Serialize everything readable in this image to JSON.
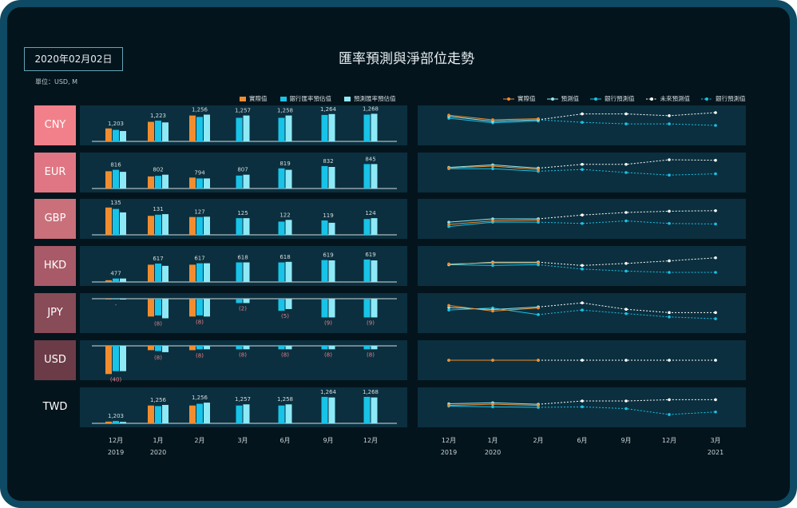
{
  "date_label": "2020年02月02日",
  "title": "匯率預測與淨部位走勢",
  "unit": "單位：USD, M",
  "legend_bar": [
    {
      "name": "實際值",
      "color": "#f28d2f"
    },
    {
      "name": "銀行匯率預估值",
      "color": "#18c3e8"
    },
    {
      "name": "預測匯率預估值",
      "color": "#8ee9f6"
    }
  ],
  "legend_line": [
    {
      "name": "實際值",
      "color": "#f28d2f",
      "style": "solid"
    },
    {
      "name": "預測值",
      "color": "#8ee9f6",
      "style": "solid"
    },
    {
      "name": "銀行預測值",
      "color": "#18c3e8",
      "style": "solid"
    },
    {
      "name": "未來預測值",
      "color": "#ffffff",
      "style": "dashed"
    },
    {
      "name": "銀行預測值",
      "color": "#18c3e8",
      "style": "dashed"
    }
  ],
  "bar_x_labels": [
    {
      "month": "12月",
      "year": "2019"
    },
    {
      "month": "1月",
      "year": "2020"
    },
    {
      "month": "2月",
      "year": ""
    },
    {
      "month": "3月",
      "year": ""
    },
    {
      "month": "6月",
      "year": ""
    },
    {
      "month": "9月",
      "year": ""
    },
    {
      "month": "12月",
      "year": ""
    }
  ],
  "line_x_labels": [
    {
      "month": "12月",
      "year": "2019"
    },
    {
      "month": "1月",
      "year": "2020"
    },
    {
      "month": "2月",
      "year": ""
    },
    {
      "month": "6月",
      "year": ""
    },
    {
      "month": "9月",
      "year": ""
    },
    {
      "month": "12月",
      "year": ""
    },
    {
      "month": "3月",
      "year": "2021"
    }
  ],
  "chart_data": [
    {
      "currency": "CNY",
      "color": "#f2808a",
      "type": "bar",
      "labels": [
        "1,203",
        "1,223",
        "1,256",
        "1,257",
        "1,258",
        "1,264",
        "1,268"
      ],
      "actual": [
        0.45,
        0.68,
        0.9,
        null,
        null,
        null,
        null
      ],
      "bank": [
        0.4,
        0.72,
        0.85,
        0.82,
        0.82,
        0.92,
        0.93
      ],
      "pred": [
        0.36,
        0.66,
        0.93,
        0.9,
        0.9,
        0.95,
        0.96
      ],
      "lines": {
        "actual": [
          0.1,
          0.28,
          0.24
        ],
        "pred": [
          0.15,
          0.34,
          0.28
        ],
        "bank": [
          0.22,
          0.4,
          0.33
        ],
        "future": [
          0.28,
          0.05,
          0.05,
          0.12,
          0.0
        ],
        "bank_future": [
          0.28,
          0.38,
          0.44,
          0.44,
          0.5
        ]
      }
    },
    {
      "currency": "EUR",
      "color": "#e07683",
      "type": "bar",
      "labels": [
        "816",
        "802",
        "794",
        "807",
        "819",
        "832",
        "845"
      ],
      "actual": [
        0.6,
        0.42,
        0.38,
        null,
        null,
        null,
        null
      ],
      "bank": [
        0.65,
        0.44,
        0.35,
        0.45,
        0.7,
        0.78,
        0.85
      ],
      "pred": [
        0.58,
        0.48,
        0.35,
        0.48,
        0.65,
        0.75,
        0.85
      ],
      "lines": {
        "actual": [
          0.32,
          0.25,
          0.38
        ],
        "pred": [
          0.3,
          0.2,
          0.33
        ],
        "bank": [
          0.35,
          0.35,
          0.45
        ],
        "future": [
          0.33,
          0.18,
          0.18,
          0.0,
          0.02
        ],
        "bank_future": [
          0.45,
          0.38,
          0.5,
          0.6,
          0.55
        ]
      }
    },
    {
      "currency": "GBP",
      "color": "#c9707b",
      "type": "bar",
      "labels": [
        "135",
        "131",
        "127",
        "125",
        "122",
        "119",
        "124"
      ],
      "actual": [
        0.95,
        0.66,
        0.62,
        null,
        null,
        null,
        null
      ],
      "bank": [
        0.9,
        0.7,
        0.62,
        0.58,
        0.46,
        0.5,
        0.55
      ],
      "pred": [
        0.78,
        0.72,
        0.63,
        0.58,
        0.52,
        0.42,
        0.58
      ],
      "lines": {
        "actual": [
          0.72,
          0.58,
          0.55
        ],
        "pred": [
          0.63,
          0.5,
          0.5
        ],
        "bank": [
          0.8,
          0.63,
          0.63
        ],
        "future": [
          0.5,
          0.35,
          0.25,
          0.2,
          0.18
        ],
        "bank_future": [
          0.63,
          0.68,
          0.58,
          0.68,
          0.7
        ]
      }
    },
    {
      "currency": "HKD",
      "color": "#a85a68",
      "type": "bar",
      "labels": [
        "477",
        "617",
        "617",
        "618",
        "618",
        "619",
        "619"
      ],
      "actual": [
        0.06,
        0.6,
        0.6,
        null,
        null,
        null,
        null
      ],
      "bank": [
        0.12,
        0.64,
        0.65,
        0.68,
        0.68,
        0.76,
        0.78
      ],
      "pred": [
        0.12,
        0.56,
        0.65,
        0.68,
        0.7,
        0.75,
        0.75
      ],
      "lines": {
        "actual": [
          0.42,
          0.38,
          0.38
        ],
        "pred": [
          0.45,
          0.35,
          0.35
        ],
        "bank": [
          0.45,
          0.48,
          0.45
        ],
        "future": [
          0.35,
          0.48,
          0.4,
          0.3,
          0.18
        ],
        "bank_future": [
          0.45,
          0.62,
          0.7,
          0.75,
          0.75
        ]
      }
    },
    {
      "currency": "JPY",
      "color": "#884b58",
      "type": "neg",
      "labels": [
        "-",
        "(8)",
        "(8)",
        "(2)",
        "(5)",
        "(9)",
        "(9)"
      ],
      "actual": [
        0.02,
        0.62,
        0.62,
        null,
        null,
        null,
        null
      ],
      "bank": [
        0.02,
        0.58,
        0.58,
        0.15,
        0.42,
        0.65,
        0.65
      ],
      "pred": [
        0.02,
        0.68,
        0.62,
        0.15,
        0.36,
        0.65,
        0.65
      ],
      "lines": {
        "actual": [
          0.2,
          0.42,
          0.3
        ],
        "pred": [
          0.28,
          0.36,
          0.26
        ],
        "bank": [
          0.38,
          0.3,
          0.56
        ],
        "future": [
          0.26,
          0.1,
          0.35,
          0.48,
          0.48
        ],
        "bank_future": [
          0.56,
          0.38,
          0.52,
          0.65,
          0.72
        ]
      }
    },
    {
      "currency": "USD",
      "color": "#6b3c48",
      "type": "neg",
      "labels": [
        "(40)",
        "(8)",
        "(8)",
        "(8)",
        "(8)",
        "(8)",
        "(8)"
      ],
      "actual": [
        0.98,
        0.15,
        0.15,
        null,
        null,
        null,
        null
      ],
      "bank": [
        0.88,
        0.18,
        0.12,
        0.12,
        0.12,
        0.12,
        0.12
      ],
      "pred": [
        0.88,
        0.22,
        0.12,
        0.12,
        0.12,
        0.12,
        0.12
      ],
      "lines": {
        "actual": [
          0.5,
          0.5,
          0.5
        ],
        "pred": [
          0.5,
          0.5,
          0.5
        ],
        "bank": [
          0.5,
          0.5,
          0.5
        ],
        "future": [
          0.5,
          0.5,
          0.5,
          0.5,
          0.5
        ],
        "bank_future": [
          0.5,
          0.5,
          0.5,
          0.5,
          0.5
        ]
      }
    },
    {
      "currency": "TWD",
      "color": "",
      "type": "bar",
      "labels": [
        "1,203",
        "1,256",
        "1,256",
        "1,257",
        "1,258",
        "1,264",
        "1,268"
      ],
      "actual": [
        0.06,
        0.62,
        0.62,
        null,
        null,
        null,
        null
      ],
      "bank": [
        0.08,
        0.6,
        0.68,
        0.62,
        0.62,
        0.92,
        0.92
      ],
      "pred": [
        0.05,
        0.64,
        0.72,
        0.66,
        0.66,
        0.9,
        0.9
      ],
      "lines": {
        "actual": [
          0.42,
          0.38,
          0.42
        ],
        "pred": [
          0.36,
          0.32,
          0.38
        ],
        "bank": [
          0.45,
          0.48,
          0.5
        ],
        "future": [
          0.38,
          0.25,
          0.25,
          0.2,
          0.2
        ],
        "bank_future": [
          0.5,
          0.48,
          0.55,
          0.78,
          0.68
        ]
      }
    }
  ]
}
